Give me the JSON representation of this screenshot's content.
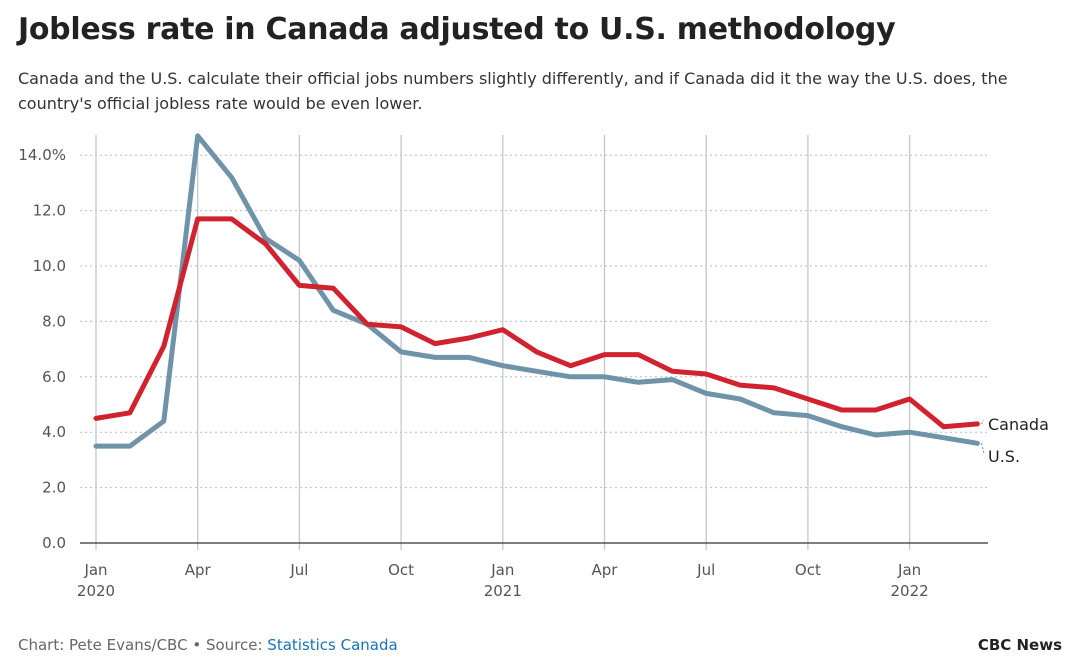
{
  "header": {
    "title": "Jobless rate in Canada adjusted to U.S. methodology",
    "subtitle": "Canada and the U.S. calculate their official jobs numbers slightly differently, and if Canada did it the way the U.S. does, the country's official jobless rate would be even lower."
  },
  "footer": {
    "credit": "Chart: Pete Evans/CBC",
    "separator": " • Source: ",
    "source_link": "Statistics Canada",
    "brand": "CBC News"
  },
  "chart_data": {
    "type": "line",
    "title": "Jobless rate in Canada adjusted to U.S. methodology",
    "xlabel": "",
    "ylabel": "",
    "ylim": [
      0,
      14
    ],
    "y_ticks": [
      {
        "value": 0,
        "label": "0.0"
      },
      {
        "value": 2,
        "label": "2.0"
      },
      {
        "value": 4,
        "label": "4.0"
      },
      {
        "value": 6,
        "label": "6.0"
      },
      {
        "value": 8,
        "label": "8.0"
      },
      {
        "value": 10,
        "label": "10.0"
      },
      {
        "value": 12,
        "label": "12.0"
      },
      {
        "value": 14,
        "label": "14.0%"
      }
    ],
    "x_ticks": [
      {
        "index": 0,
        "label": "Jan",
        "year": "2020"
      },
      {
        "index": 3,
        "label": "Apr",
        "year": ""
      },
      {
        "index": 6,
        "label": "Jul",
        "year": ""
      },
      {
        "index": 9,
        "label": "Oct",
        "year": ""
      },
      {
        "index": 12,
        "label": "Jan",
        "year": "2021"
      },
      {
        "index": 15,
        "label": "Apr",
        "year": ""
      },
      {
        "index": 18,
        "label": "Jul",
        "year": ""
      },
      {
        "index": 21,
        "label": "Oct",
        "year": ""
      },
      {
        "index": 24,
        "label": "Jan",
        "year": "2022"
      }
    ],
    "categories": [
      "Jan 2020",
      "Feb 2020",
      "Mar 2020",
      "Apr 2020",
      "May 2020",
      "Jun 2020",
      "Jul 2020",
      "Aug 2020",
      "Sep 2020",
      "Oct 2020",
      "Nov 2020",
      "Dec 2020",
      "Jan 2021",
      "Feb 2021",
      "Mar 2021",
      "Apr 2021",
      "May 2021",
      "Jun 2021",
      "Jul 2021",
      "Aug 2021",
      "Sep 2021",
      "Oct 2021",
      "Nov 2021",
      "Dec 2021",
      "Jan 2022",
      "Feb 2022",
      "Mar 2022"
    ],
    "series": [
      {
        "name": "Canada",
        "color": "#d0232f",
        "values": [
          4.5,
          4.7,
          7.1,
          11.7,
          11.7,
          10.8,
          9.3,
          9.2,
          7.9,
          7.8,
          7.2,
          7.4,
          7.7,
          6.9,
          6.4,
          6.8,
          6.8,
          6.2,
          6.1,
          5.7,
          5.6,
          5.2,
          4.8,
          4.8,
          5.2,
          4.2,
          4.3
        ]
      },
      {
        "name": "U.S.",
        "color": "#6f93a8",
        "values": [
          3.5,
          3.5,
          4.4,
          14.7,
          13.2,
          11.0,
          10.2,
          8.4,
          7.9,
          6.9,
          6.7,
          6.7,
          6.4,
          6.2,
          6.0,
          6.0,
          5.8,
          5.9,
          5.4,
          5.2,
          4.7,
          4.6,
          4.2,
          3.9,
          4.0,
          3.8,
          3.6
        ]
      }
    ],
    "grid": true,
    "legend": "end-of-line labels"
  }
}
